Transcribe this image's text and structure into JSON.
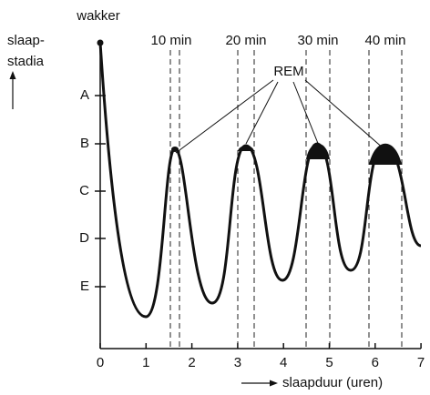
{
  "top_label": "wakker",
  "y_label_lines": [
    "slaap-",
    "stadia"
  ],
  "stages": [
    "A",
    "B",
    "C",
    "D",
    "E"
  ],
  "hours": [
    0,
    1,
    2,
    3,
    4,
    5,
    6,
    7
  ],
  "x_label": "slaapduur (uren)",
  "durations": [
    "10 min",
    "20 min",
    "30 min",
    "40 min"
  ],
  "rem_label": "REM"
}
